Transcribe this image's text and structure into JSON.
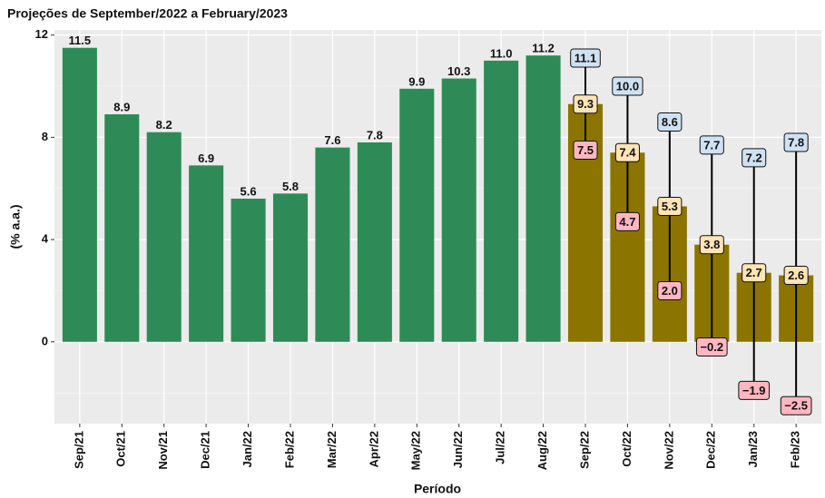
{
  "chart_data": {
    "type": "bar",
    "title": "Projeções de September/2022 a February/2023",
    "x_label": "Período",
    "y_label": "(% a.a.)",
    "categories": [
      "Sep/21",
      "Oct/21",
      "Nov/21",
      "Dec/21",
      "Jan/22",
      "Feb/22",
      "Mar/22",
      "Apr/22",
      "May/22",
      "Jun/22",
      "Jul/22",
      "Aug/22",
      "Sep/22",
      "Oct/22",
      "Nov/22",
      "Dec/22",
      "Jan/23",
      "Feb/23"
    ],
    "values": [
      11.5,
      8.9,
      8.2,
      6.9,
      5.6,
      5.8,
      7.6,
      7.8,
      9.9,
      10.3,
      11.0,
      11.2,
      9.3,
      7.4,
      5.3,
      3.8,
      2.7,
      2.6
    ],
    "value_labels": [
      "11.5",
      "8.9",
      "8.2",
      "6.9",
      "5.6",
      "5.8",
      "7.6",
      "7.8",
      "9.9",
      "10.3",
      "11.0",
      "11.2",
      "9.3",
      "7.4",
      "5.3",
      "3.8",
      "2.7",
      "2.6"
    ],
    "colors": [
      "#2e8b57",
      "#2e8b57",
      "#2e8b57",
      "#2e8b57",
      "#2e8b57",
      "#2e8b57",
      "#2e8b57",
      "#2e8b57",
      "#2e8b57",
      "#2e8b57",
      "#2e8b57",
      "#2e8b57",
      "#8b7500",
      "#8b7500",
      "#8b7500",
      "#8b7500",
      "#8b7500",
      "#8b7500"
    ],
    "upper": [
      null,
      null,
      null,
      null,
      null,
      null,
      null,
      null,
      null,
      null,
      null,
      null,
      11.1,
      10.0,
      8.6,
      7.7,
      7.2,
      7.8
    ],
    "upper_labels": [
      null,
      null,
      null,
      null,
      null,
      null,
      null,
      null,
      null,
      null,
      null,
      null,
      "11.1",
      "10.0",
      "8.6",
      "7.7",
      "7.2",
      "7.8"
    ],
    "lower": [
      null,
      null,
      null,
      null,
      null,
      null,
      null,
      null,
      null,
      null,
      null,
      null,
      7.5,
      4.7,
      2.0,
      -0.2,
      -1.9,
      -2.5
    ],
    "lower_labels": [
      null,
      null,
      null,
      null,
      null,
      null,
      null,
      null,
      null,
      null,
      null,
      null,
      "7.5",
      "4.7",
      "2.0",
      "−0.2",
      "−1.9",
      "−2.5"
    ],
    "ylim": [
      -3.2,
      12.2
    ],
    "yticks": [
      0,
      4,
      8,
      12
    ],
    "minor_yticks": [
      -2,
      2,
      6,
      10
    ],
    "grid": true
  }
}
